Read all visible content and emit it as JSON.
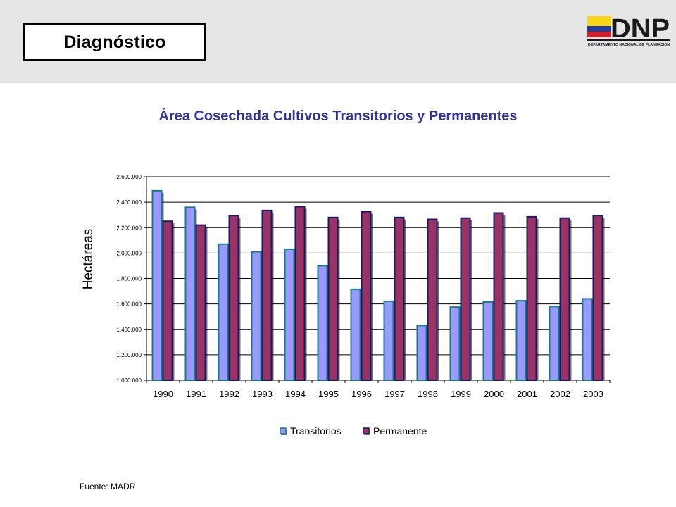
{
  "header": {
    "section_title": "Diagnóstico",
    "logo": {
      "text": "DNP",
      "subtitle": "DEPARTAMENTO NACIONAL DE PLANEACION",
      "flag_colors": [
        "#f9d616",
        "#1f3f9a",
        "#d21f2b"
      ]
    }
  },
  "chart_data": {
    "type": "bar",
    "title": "Área Cosechada Cultivos Transitorios y Permanentes",
    "ylabel": "Hectáreas",
    "xlabel": "",
    "ylim": [
      1000000,
      2600000
    ],
    "yticks": [
      "1.000.000",
      "1.200.000",
      "1.400.000",
      "1.600.000",
      "1.800.000",
      "2.000.000",
      "2.200.000",
      "2.400.000",
      "2.600.000"
    ],
    "categories": [
      "1990",
      "1991",
      "1992",
      "1993",
      "1994",
      "1995",
      "1996",
      "1997",
      "1998",
      "1999",
      "2000",
      "2001",
      "2002",
      "2003"
    ],
    "series": [
      {
        "name": "Transitorios",
        "color": "#9999ff",
        "values": [
          2490000,
          2360000,
          2070000,
          2010000,
          2030000,
          1900000,
          1715000,
          1620000,
          1430000,
          1575000,
          1615000,
          1625000,
          1580000,
          1640000
        ]
      },
      {
        "name": "Permanente",
        "color": "#993366",
        "values": [
          2250000,
          2220000,
          2295000,
          2335000,
          2365000,
          2280000,
          2325000,
          2280000,
          2265000,
          2275000,
          2315000,
          2285000,
          2275000,
          2295000
        ]
      }
    ],
    "grid": true,
    "legend_position": "bottom"
  },
  "footer": {
    "source": "Fuente: MADR"
  }
}
